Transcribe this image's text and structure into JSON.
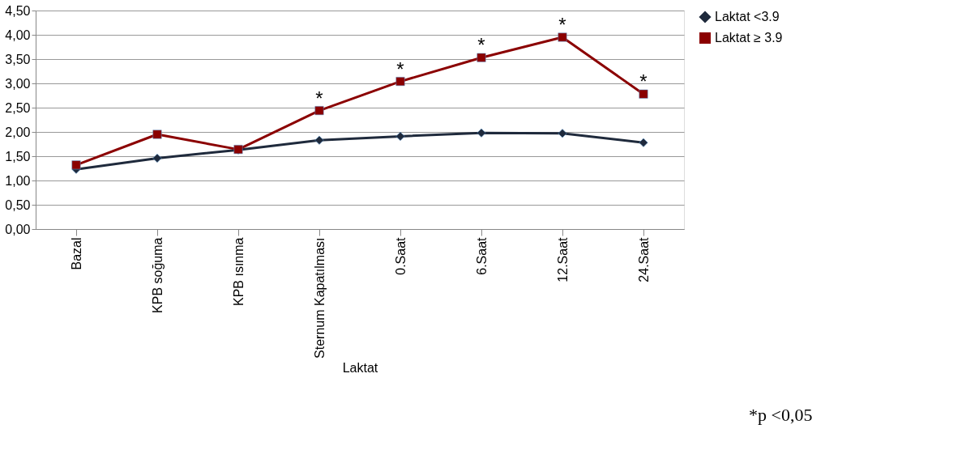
{
  "chart_data": {
    "type": "line",
    "xlabel": "Laktat",
    "categories": [
      "Bazal",
      "KPB soğuma",
      "KPB ısınma",
      "Sternum Kapatılması",
      "0.Saat",
      "6.Saat",
      "12.Saat",
      "24.Saat"
    ],
    "series": [
      {
        "name": "Laktat <3.9",
        "color": "#1f2a3c",
        "marker": "diamond",
        "values": [
          1.23,
          1.46,
          1.63,
          1.83,
          1.91,
          1.98,
          1.97,
          1.78
        ]
      },
      {
        "name": "Laktat ≥ 3.9",
        "color": "#8b0000",
        "marker": "square",
        "values": [
          1.32,
          1.95,
          1.64,
          2.44,
          3.04,
          3.53,
          3.95,
          2.78
        ]
      }
    ],
    "ylim": [
      0,
      4.5
    ],
    "yticks": [
      {
        "value": 0,
        "label": "0,00"
      },
      {
        "value": 0.5,
        "label": "0,50"
      },
      {
        "value": 1,
        "label": "1,00"
      },
      {
        "value": 1.5,
        "label": "1,50"
      },
      {
        "value": 2,
        "label": "2,00"
      },
      {
        "value": 2.5,
        "label": "2,50"
      },
      {
        "value": 3,
        "label": "3,00"
      },
      {
        "value": 3.5,
        "label": "3,50"
      },
      {
        "value": 4,
        "label": "4,00"
      },
      {
        "value": 4.5,
        "label": "4,50"
      }
    ],
    "grid": "y",
    "legend": "right",
    "line_style": "solid",
    "annotations": [
      {
        "text": "*",
        "x": "Sternum Kapatılması",
        "y": 2.44
      },
      {
        "text": "*",
        "x": "0.Saat",
        "y": 3.04
      },
      {
        "text": "*",
        "x": "6.Saat",
        "y": 3.53
      },
      {
        "text": "*",
        "x": "12.Saat",
        "y": 3.95
      },
      {
        "text": "*",
        "x": "24.Saat",
        "y": 2.78
      },
      "*p <0,05"
    ]
  }
}
